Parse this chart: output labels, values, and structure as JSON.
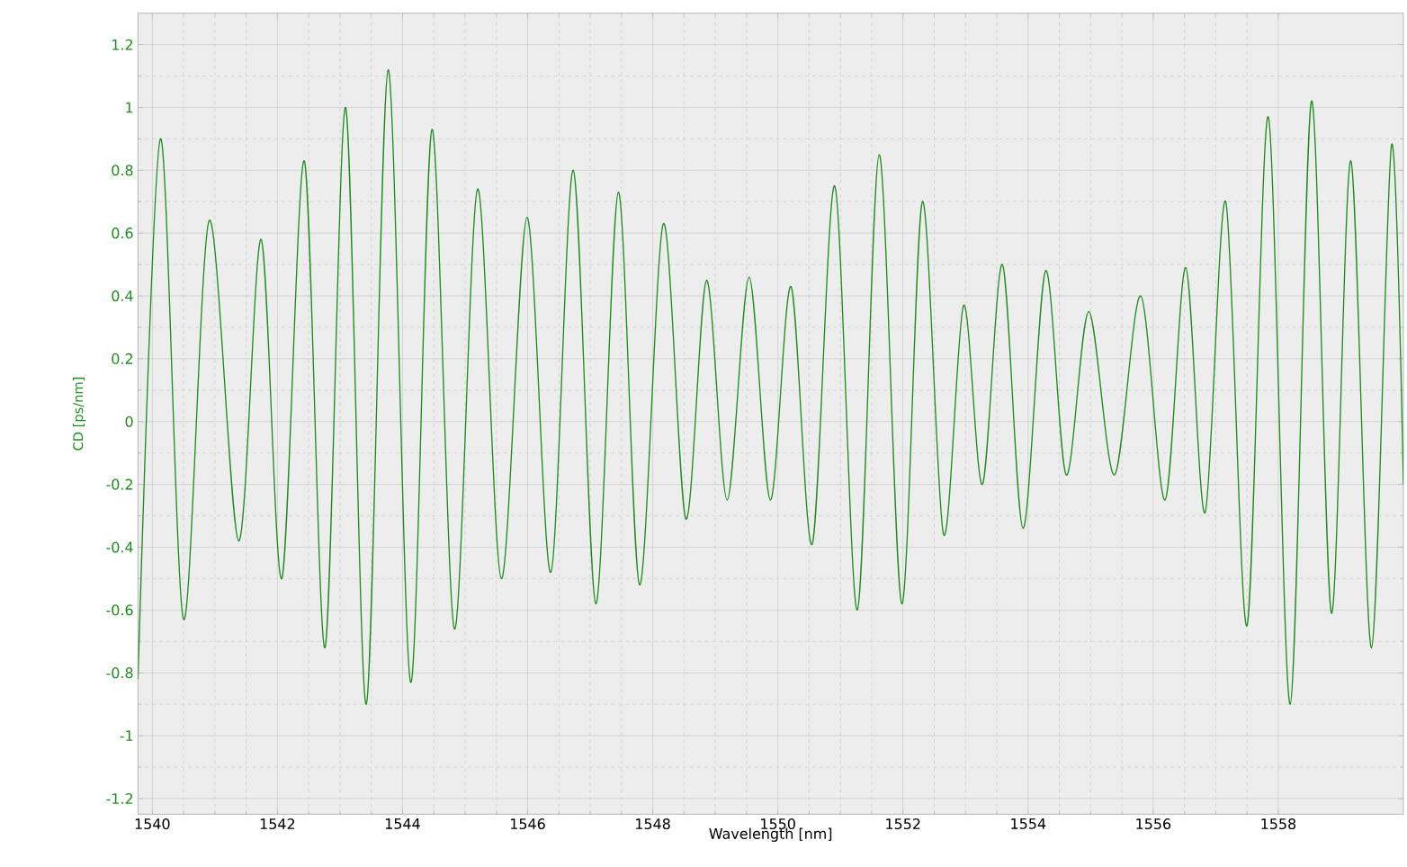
{
  "chart_data": {
    "type": "line",
    "xlabel": "Wavelength [nm]",
    "ylabel": "CD [ps/nm]",
    "xlim": [
      1539.77,
      1560
    ],
    "ylim": [
      -1.25,
      1.3
    ],
    "xticks": [
      1540,
      1542,
      1544,
      1546,
      1548,
      1550,
      1552,
      1554,
      1556,
      1558
    ],
    "yticks": [
      -1.2,
      -1,
      -0.8,
      -0.6,
      -0.4,
      -0.2,
      0,
      0.2,
      0.4,
      0.6,
      0.8,
      1,
      1.2
    ],
    "grid": true,
    "marker": "none",
    "line_style": "solid",
    "series": [
      {
        "color": "#1e8c1e",
        "x": [
          1539.77,
          1540.13,
          1540.5,
          1540.91,
          1541.38,
          1541.74,
          1542.07,
          1542.43,
          1542.76,
          1543.09,
          1543.42,
          1543.77,
          1544.13,
          1544.47,
          1544.83,
          1545.2,
          1545.58,
          1545.99,
          1546.37,
          1546.73,
          1547.09,
          1547.45,
          1547.79,
          1548.17,
          1548.53,
          1548.86,
          1549.19,
          1549.54,
          1549.88,
          1550.21,
          1550.55,
          1550.91,
          1551.27,
          1551.62,
          1551.98,
          1552.31,
          1552.65,
          1552.97,
          1553.27,
          1553.59,
          1553.92,
          1554.28,
          1554.61,
          1554.97,
          1555.38,
          1555.8,
          1556.19,
          1556.52,
          1556.83,
          1557.16,
          1557.5,
          1557.84,
          1558.19,
          1558.53,
          1558.85,
          1559.16,
          1559.49,
          1559.81,
          1560
        ],
        "values": [
          -0.82,
          0.9,
          -0.63,
          0.64,
          -0.38,
          0.58,
          -0.5,
          0.83,
          -0.72,
          1.0,
          -0.9,
          1.12,
          -0.83,
          0.93,
          -0.66,
          0.74,
          -0.5,
          0.65,
          -0.48,
          0.8,
          -0.58,
          0.73,
          -0.52,
          0.63,
          -0.31,
          0.45,
          -0.25,
          0.46,
          -0.25,
          0.43,
          -0.39,
          0.75,
          -0.6,
          0.85,
          -0.58,
          0.7,
          -0.36,
          0.37,
          -0.2,
          0.5,
          -0.34,
          0.48,
          -0.17,
          0.35,
          -0.17,
          0.4,
          -0.25,
          0.49,
          -0.29,
          0.7,
          -0.65,
          0.97,
          -0.9,
          1.02,
          -0.61,
          0.83,
          -0.72,
          0.88,
          -0.2
        ]
      }
    ]
  }
}
